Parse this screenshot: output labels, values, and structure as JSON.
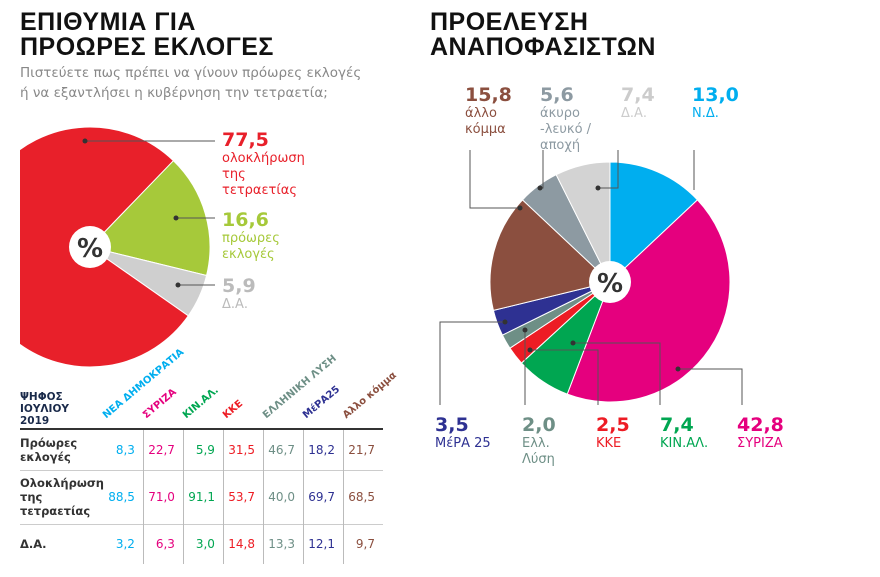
{
  "left": {
    "title_line1": "ΕΠΙΘΥΜΙΑ ΓΙΑ",
    "title_line2": "ΠΡΟΩΡΕΣ ΕΚΛΟΓΕΣ",
    "subtitle_line1": "Πιστεύετε πως πρέπει να γίνουν πρόωρες εκλογές",
    "subtitle_line2": "ή να εξαντλήσει η κυβέρνηση την τετραετία;",
    "center_symbol": "%"
  },
  "right": {
    "title_line1": "ΠΡΟΕΛΕΥΣΗ",
    "title_line2": "ΑΝΑΠΟΦΑΣΙΣΤΩΝ",
    "center_symbol": "%"
  },
  "chart_data": [
    {
      "type": "pie",
      "title": "ΕΠΙΘΥΜΙΑ ΓΙΑ ΠΡΟΩΡΕΣ ΕΚΛΟΓΕΣ",
      "slices": [
        {
          "value": "77,5",
          "label": "ολοκλήρωση της τετραετίας",
          "v": 77.5,
          "color": "#e8202a"
        },
        {
          "value": "16,6",
          "label": "πρόωρες εκλογές",
          "v": 16.6,
          "color": "#a6c93a"
        },
        {
          "value": "5,9",
          "label": "Δ.Α.",
          "v": 5.9,
          "color": "#cfcfcf"
        }
      ]
    },
    {
      "type": "pie",
      "title": "ΠΡΟΕΛΕΥΣΗ ΑΝΑΠΟΦΑΣΙΣΤΩΝ",
      "slices": [
        {
          "value": "13,0",
          "label": "Ν.Δ.",
          "v": 13.0,
          "color": "#00aeef"
        },
        {
          "value": "42,8",
          "label": "ΣΥΡΙΖΑ",
          "v": 42.8,
          "color": "#e5007e"
        },
        {
          "value": "7,4",
          "label": "ΚΙΝ.ΑΛ.",
          "v": 7.4,
          "color": "#00a651"
        },
        {
          "value": "2,5",
          "label": "ΚΚΕ",
          "v": 2.5,
          "color": "#ed1c24"
        },
        {
          "value": "2,0",
          "label": "Ελλ. Λύση",
          "v": 2.0,
          "color": "#6e8f86"
        },
        {
          "value": "3,5",
          "label": "ΜέΡΑ 25",
          "v": 3.5,
          "color": "#2e3192"
        },
        {
          "value": "15,8",
          "label": "άλλο κόμμα",
          "v": 15.8,
          "color": "#8b4f3f"
        },
        {
          "value": "5,6",
          "label": "άκυρο -λευκό /αποχή",
          "v": 5.6,
          "color": "#8d9aa2"
        },
        {
          "value": "7,4",
          "label": "Δ.Α.",
          "v": 7.4,
          "color": "#d3d3d3"
        }
      ]
    },
    {
      "type": "table",
      "corner": "ΨΗΦΟΣ ΙΟΥΛΙΟΥ 2019",
      "columns": [
        {
          "name": "ΝΕΑ ΔΗΜΟΚΡΑΤΙΑ",
          "color": "#00aeef"
        },
        {
          "name": "ΣΥΡΙΖΑ",
          "color": "#e5007e"
        },
        {
          "name": "ΚΙΝ.ΑΛ.",
          "color": "#00a651"
        },
        {
          "name": "ΚΚΕ",
          "color": "#ed1c24"
        },
        {
          "name": "ΕΛΛΗΝΙΚΗ ΛΥΣΗ",
          "color": "#6e8f86"
        },
        {
          "name": "ΜέΡΑ25",
          "color": "#2e3192"
        },
        {
          "name": "Αλλο κόμμα",
          "color": "#8b4f3f"
        }
      ],
      "rows": [
        {
          "label": "Πρόωρες εκλογές",
          "values": [
            "8,3",
            "22,7",
            "5,9",
            "31,5",
            "46,7",
            "18,2",
            "21,7"
          ]
        },
        {
          "label": "Ολοκλήρωση της τετραετίας",
          "values": [
            "88,5",
            "71,0",
            "91,1",
            "53,7",
            "40,0",
            "69,7",
            "68,5"
          ]
        },
        {
          "label": "Δ.Α.",
          "values": [
            "3,2",
            "6,3",
            "3,0",
            "14,8",
            "13,3",
            "12,1",
            "9,7"
          ]
        }
      ]
    }
  ]
}
